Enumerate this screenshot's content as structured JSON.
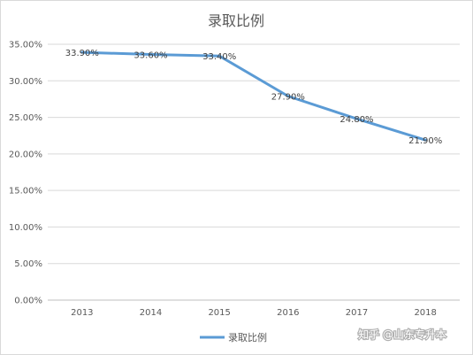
{
  "chart_data": {
    "type": "line",
    "title": "录取比例",
    "categories": [
      "2013",
      "2014",
      "2015",
      "2016",
      "2017",
      "2018"
    ],
    "series": [
      {
        "name": "录取比例",
        "values": [
          33.9,
          33.6,
          33.4,
          27.9,
          24.8,
          21.9
        ],
        "labels": [
          "33.90%",
          "33.60%",
          "33.40%",
          "27.90%",
          "24.80%",
          "21.90%"
        ],
        "color": "#5b9bd5"
      }
    ],
    "ylim": [
      0,
      35
    ],
    "yticks": [
      "0.00%",
      "5.00%",
      "10.00%",
      "15.00%",
      "20.00%",
      "25.00%",
      "30.00%",
      "35.00%"
    ],
    "xlabel": "",
    "ylabel": "",
    "grid": true,
    "legend": "bottom"
  },
  "watermark": "知乎 @山东专升本"
}
